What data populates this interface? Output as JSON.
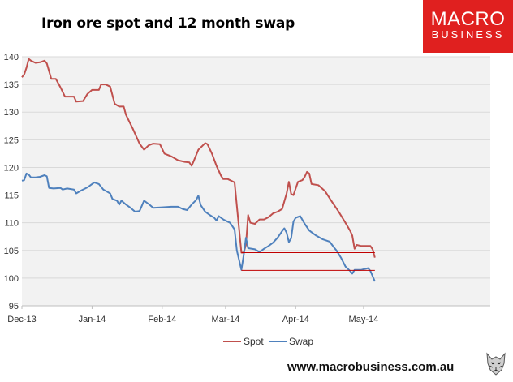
{
  "header": {
    "title": "Iron ore spot and 12 month swap"
  },
  "logo": {
    "line1": "MACRO",
    "line2": "BUSINESS",
    "color": "#e0201f"
  },
  "footer": {
    "url": "www.macrobusiness.com.au"
  },
  "colors": {
    "spot": "#c0504d",
    "swap": "#4f81bd",
    "plot_bg": "#f2f2f2",
    "gridline": "#d9d9d9",
    "reference": "#c00000"
  },
  "chart_data": {
    "type": "line",
    "title": "Iron ore spot and 12 month swap",
    "xlabel": "",
    "ylabel": "",
    "ylim": [
      95,
      140
    ],
    "yticks": [
      95,
      100,
      105,
      110,
      115,
      120,
      125,
      130,
      135,
      140
    ],
    "x_date_range": [
      "2013-12-02",
      "2014-06-27"
    ],
    "x_ticks": [
      {
        "label": "Dec-13",
        "date": "2013-12-02"
      },
      {
        "label": "Jan-14",
        "date": "2014-01-02"
      },
      {
        "label": "Feb-14",
        "date": "2014-02-02"
      },
      {
        "label": "Mar-14",
        "date": "2014-03-02"
      },
      {
        "label": "Apr-14",
        "date": "2014-04-02"
      },
      {
        "label": "May-14",
        "date": "2014-05-02"
      }
    ],
    "grid": true,
    "legend_position": "bottom",
    "series": [
      {
        "name": "Spot",
        "points": [
          [
            "2013-12-02",
            136.3
          ],
          [
            "2013-12-03",
            136.8
          ],
          [
            "2013-12-04",
            138.0
          ],
          [
            "2013-12-05",
            139.6
          ],
          [
            "2013-12-06",
            139.3
          ],
          [
            "2013-12-08",
            138.9
          ],
          [
            "2013-12-10",
            139.0
          ],
          [
            "2013-12-12",
            139.3
          ],
          [
            "2013-12-13",
            138.8
          ],
          [
            "2013-12-15",
            136.0
          ],
          [
            "2013-12-17",
            136.0
          ],
          [
            "2013-12-19",
            134.5
          ],
          [
            "2013-12-21",
            132.8
          ],
          [
            "2013-12-23",
            132.8
          ],
          [
            "2013-12-25",
            132.8
          ],
          [
            "2013-12-26",
            131.9
          ],
          [
            "2013-12-29",
            132.0
          ],
          [
            "2013-12-31",
            133.3
          ],
          [
            "2014-01-02",
            134.0
          ],
          [
            "2014-01-05",
            134.0
          ],
          [
            "2014-01-06",
            135.0
          ],
          [
            "2014-01-08",
            135.0
          ],
          [
            "2014-01-10",
            134.6
          ],
          [
            "2014-01-12",
            131.5
          ],
          [
            "2014-01-14",
            131.0
          ],
          [
            "2014-01-16",
            131.0
          ],
          [
            "2014-01-17",
            129.5
          ],
          [
            "2014-01-20",
            127.0
          ],
          [
            "2014-01-23",
            124.3
          ],
          [
            "2014-01-25",
            123.2
          ],
          [
            "2014-01-27",
            124.0
          ],
          [
            "2014-01-29",
            124.3
          ],
          [
            "2014-02-01",
            124.2
          ],
          [
            "2014-02-03",
            122.5
          ],
          [
            "2014-02-06",
            122.0
          ],
          [
            "2014-02-09",
            121.3
          ],
          [
            "2014-02-12",
            121.0
          ],
          [
            "2014-02-14",
            120.9
          ],
          [
            "2014-02-15",
            120.3
          ],
          [
            "2014-02-16",
            121.2
          ],
          [
            "2014-02-18",
            123.2
          ],
          [
            "2014-02-20",
            124.0
          ],
          [
            "2014-02-21",
            124.4
          ],
          [
            "2014-02-22",
            124.2
          ],
          [
            "2014-02-24",
            122.5
          ],
          [
            "2014-02-26",
            120.3
          ],
          [
            "2014-02-28",
            118.5
          ],
          [
            "2014-03-01",
            117.9
          ],
          [
            "2014-03-03",
            117.9
          ],
          [
            "2014-03-06",
            117.3
          ],
          [
            "2014-03-09",
            104.6
          ],
          [
            "2014-03-10",
            104.6
          ],
          [
            "2014-03-11",
            106.0
          ],
          [
            "2014-03-12",
            111.4
          ],
          [
            "2014-03-13",
            110.0
          ],
          [
            "2014-03-15",
            109.8
          ],
          [
            "2014-03-17",
            110.6
          ],
          [
            "2014-03-19",
            110.6
          ],
          [
            "2014-03-21",
            111.0
          ],
          [
            "2014-03-23",
            111.7
          ],
          [
            "2014-03-25",
            112.0
          ],
          [
            "2014-03-27",
            112.5
          ],
          [
            "2014-03-29",
            115.3
          ],
          [
            "2014-03-30",
            117.4
          ],
          [
            "2014-03-31",
            115.2
          ],
          [
            "2014-04-01",
            115.0
          ],
          [
            "2014-04-03",
            117.4
          ],
          [
            "2014-04-05",
            117.7
          ],
          [
            "2014-04-06",
            118.3
          ],
          [
            "2014-04-07",
            119.2
          ],
          [
            "2014-04-08",
            118.9
          ],
          [
            "2014-04-09",
            117.0
          ],
          [
            "2014-04-12",
            116.8
          ],
          [
            "2014-04-15",
            115.7
          ],
          [
            "2014-04-18",
            113.8
          ],
          [
            "2014-04-21",
            112.0
          ],
          [
            "2014-04-24",
            110.0
          ],
          [
            "2014-04-26",
            108.6
          ],
          [
            "2014-04-27",
            107.7
          ],
          [
            "2014-04-28",
            105.3
          ],
          [
            "2014-04-29",
            106.0
          ],
          [
            "2014-05-01",
            105.8
          ],
          [
            "2014-05-03",
            105.8
          ],
          [
            "2014-05-05",
            105.8
          ],
          [
            "2014-05-06",
            105.2
          ],
          [
            "2014-05-07",
            103.7
          ]
        ]
      },
      {
        "name": "Swap",
        "points": [
          [
            "2013-12-02",
            117.6
          ],
          [
            "2013-12-03",
            117.7
          ],
          [
            "2013-12-04",
            118.9
          ],
          [
            "2013-12-05",
            118.7
          ],
          [
            "2013-12-06",
            118.2
          ],
          [
            "2013-12-08",
            118.2
          ],
          [
            "2013-12-10",
            118.3
          ],
          [
            "2013-12-12",
            118.6
          ],
          [
            "2013-12-13",
            118.4
          ],
          [
            "2013-12-14",
            116.3
          ],
          [
            "2013-12-16",
            116.2
          ],
          [
            "2013-12-19",
            116.3
          ],
          [
            "2013-12-20",
            116.0
          ],
          [
            "2013-12-22",
            116.2
          ],
          [
            "2013-12-25",
            116.0
          ],
          [
            "2013-12-26",
            115.3
          ],
          [
            "2013-12-28",
            115.8
          ],
          [
            "2013-12-31",
            116.4
          ],
          [
            "2014-01-02",
            117.0
          ],
          [
            "2014-01-03",
            117.3
          ],
          [
            "2014-01-05",
            117.0
          ],
          [
            "2014-01-07",
            116.0
          ],
          [
            "2014-01-10",
            115.3
          ],
          [
            "2014-01-11",
            114.3
          ],
          [
            "2014-01-13",
            114.0
          ],
          [
            "2014-01-14",
            113.3
          ],
          [
            "2014-01-15",
            114.0
          ],
          [
            "2014-01-17",
            113.3
          ],
          [
            "2014-01-19",
            112.7
          ],
          [
            "2014-01-21",
            112.0
          ],
          [
            "2014-01-23",
            112.1
          ],
          [
            "2014-01-25",
            114.0
          ],
          [
            "2014-01-27",
            113.4
          ],
          [
            "2014-01-29",
            112.7
          ],
          [
            "2014-02-02",
            112.8
          ],
          [
            "2014-02-06",
            112.9
          ],
          [
            "2014-02-09",
            112.9
          ],
          [
            "2014-02-11",
            112.5
          ],
          [
            "2014-02-13",
            112.3
          ],
          [
            "2014-02-15",
            113.3
          ],
          [
            "2014-02-17",
            114.1
          ],
          [
            "2014-02-18",
            114.9
          ],
          [
            "2014-02-19",
            113.2
          ],
          [
            "2014-02-21",
            112.0
          ],
          [
            "2014-02-23",
            111.4
          ],
          [
            "2014-02-25",
            110.9
          ],
          [
            "2014-02-26",
            110.4
          ],
          [
            "2014-02-27",
            111.2
          ],
          [
            "2014-03-01",
            110.6
          ],
          [
            "2014-03-04",
            110.0
          ],
          [
            "2014-03-06",
            108.8
          ],
          [
            "2014-03-07",
            105.0
          ],
          [
            "2014-03-09",
            101.5
          ],
          [
            "2014-03-10",
            104.1
          ],
          [
            "2014-03-11",
            107.3
          ],
          [
            "2014-03-12",
            105.4
          ],
          [
            "2014-03-15",
            105.2
          ],
          [
            "2014-03-17",
            104.7
          ],
          [
            "2014-03-19",
            105.3
          ],
          [
            "2014-03-21",
            105.8
          ],
          [
            "2014-03-23",
            106.4
          ],
          [
            "2014-03-25",
            107.3
          ],
          [
            "2014-03-27",
            108.5
          ],
          [
            "2014-03-28",
            109.0
          ],
          [
            "2014-03-29",
            108.2
          ],
          [
            "2014-03-30",
            106.5
          ],
          [
            "2014-03-31",
            107.2
          ],
          [
            "2014-04-01",
            110.2
          ],
          [
            "2014-04-02",
            110.9
          ],
          [
            "2014-04-04",
            111.2
          ],
          [
            "2014-04-06",
            109.8
          ],
          [
            "2014-04-08",
            108.6
          ],
          [
            "2014-04-11",
            107.7
          ],
          [
            "2014-04-14",
            107.0
          ],
          [
            "2014-04-17",
            106.6
          ],
          [
            "2014-04-19",
            105.5
          ],
          [
            "2014-04-20",
            105.0
          ],
          [
            "2014-04-22",
            103.7
          ],
          [
            "2014-04-24",
            102.1
          ],
          [
            "2014-04-26",
            101.3
          ],
          [
            "2014-04-27",
            100.8
          ],
          [
            "2014-04-28",
            101.5
          ],
          [
            "2014-05-01",
            101.5
          ],
          [
            "2014-05-04",
            101.8
          ],
          [
            "2014-05-05",
            101.3
          ],
          [
            "2014-05-07",
            99.4
          ]
        ]
      }
    ],
    "reference_lines": [
      {
        "y": 104.6,
        "from": "2014-03-09",
        "to": "2014-05-07"
      },
      {
        "y": 101.4,
        "from": "2014-03-09",
        "to": "2014-05-07"
      }
    ]
  }
}
